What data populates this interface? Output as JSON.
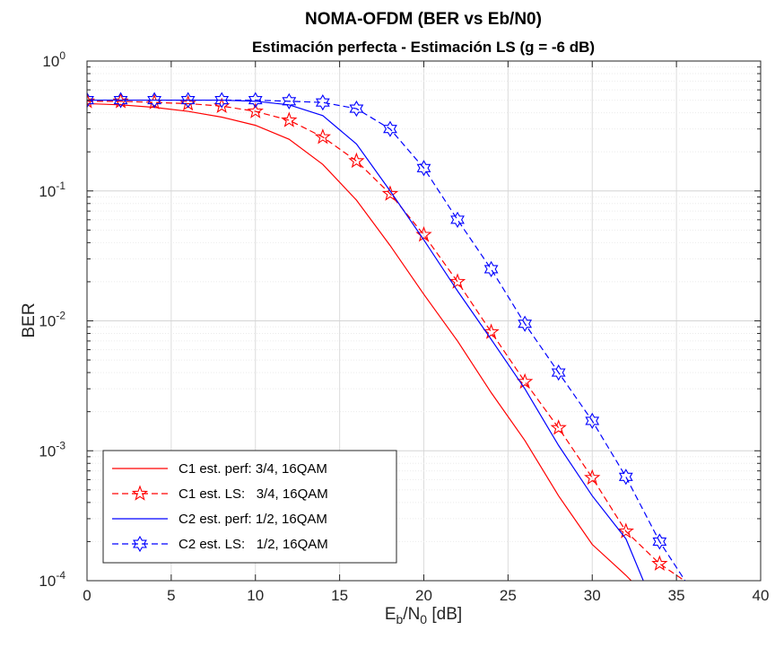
{
  "chart_data": {
    "type": "line",
    "title": "NOMA-OFDM (BER vs Eb/N0)",
    "subtitle": "Estimación perfecta - Estimación LS (g = -6 dB)",
    "xlabel": {
      "main": "E",
      "sub1": "b",
      "slash": "/N",
      "sub2": "0",
      "unit": " [dB]"
    },
    "ylabel": "BER",
    "xlim": [
      0,
      40
    ],
    "ylim": [
      0.0001,
      1
    ],
    "yscale": "log",
    "grid": true,
    "minor_grid": true,
    "legend_position": "bottom-left",
    "x_ticks": [
      "0",
      "5",
      "10",
      "15",
      "20",
      "25",
      "30",
      "35",
      "40"
    ],
    "y_ticks": [
      {
        "value": 1,
        "base": "10",
        "exp": "0"
      },
      {
        "value": 0.1,
        "base": "10",
        "exp": "-1"
      },
      {
        "value": 0.01,
        "base": "10",
        "exp": "-2"
      },
      {
        "value": 0.001,
        "base": "10",
        "exp": "-3"
      },
      {
        "value": 0.0001,
        "base": "10",
        "exp": "-4"
      }
    ],
    "series": [
      {
        "name": "C1 est. perf: 3/4, 16QAM",
        "color": "#ff0000",
        "line": "solid",
        "marker": "none",
        "x": [
          0,
          2,
          4,
          6,
          8,
          10,
          12,
          14,
          16,
          18,
          20,
          22,
          24,
          26,
          28,
          30,
          32,
          34
        ],
        "y": [
          0.47,
          0.46,
          0.44,
          0.41,
          0.37,
          0.32,
          0.25,
          0.16,
          0.085,
          0.038,
          0.016,
          0.007,
          0.0028,
          0.0012,
          0.00045,
          0.00019,
          0.00011,
          6e-05
        ]
      },
      {
        "name": "C1 est. LS:   3/4, 16QAM",
        "color": "#ff0000",
        "line": "dashed",
        "marker": "star",
        "x": [
          0,
          2,
          4,
          6,
          8,
          10,
          12,
          14,
          16,
          18,
          20,
          22,
          24,
          26,
          28,
          30,
          32,
          34,
          36
        ],
        "y": [
          0.49,
          0.49,
          0.48,
          0.47,
          0.45,
          0.41,
          0.35,
          0.26,
          0.17,
          0.095,
          0.046,
          0.02,
          0.0082,
          0.0034,
          0.0015,
          0.00062,
          0.00024,
          0.000135,
          9e-05
        ]
      },
      {
        "name": "C2 est. perf: 1/2, 16QAM",
        "color": "#0000ff",
        "line": "solid",
        "marker": "none",
        "x": [
          0,
          2,
          4,
          6,
          8,
          10,
          12,
          14,
          16,
          18,
          20,
          22,
          24,
          26,
          28,
          30,
          32,
          34
        ],
        "y": [
          0.5,
          0.5,
          0.5,
          0.5,
          0.5,
          0.49,
          0.46,
          0.38,
          0.23,
          0.1,
          0.042,
          0.017,
          0.0072,
          0.003,
          0.0011,
          0.00045,
          0.00021,
          5e-05
        ]
      },
      {
        "name": "C2 est. LS:   1/2, 16QAM",
        "color": "#0000ff",
        "line": "dashed",
        "marker": "hexagram",
        "x": [
          0,
          2,
          4,
          6,
          8,
          10,
          12,
          14,
          16,
          18,
          20,
          22,
          24,
          26,
          28,
          30,
          32,
          34,
          36
        ],
        "y": [
          0.5,
          0.5,
          0.5,
          0.5,
          0.5,
          0.5,
          0.49,
          0.48,
          0.43,
          0.3,
          0.15,
          0.06,
          0.025,
          0.0095,
          0.004,
          0.0017,
          0.00063,
          0.0002,
          8e-05
        ]
      }
    ]
  }
}
